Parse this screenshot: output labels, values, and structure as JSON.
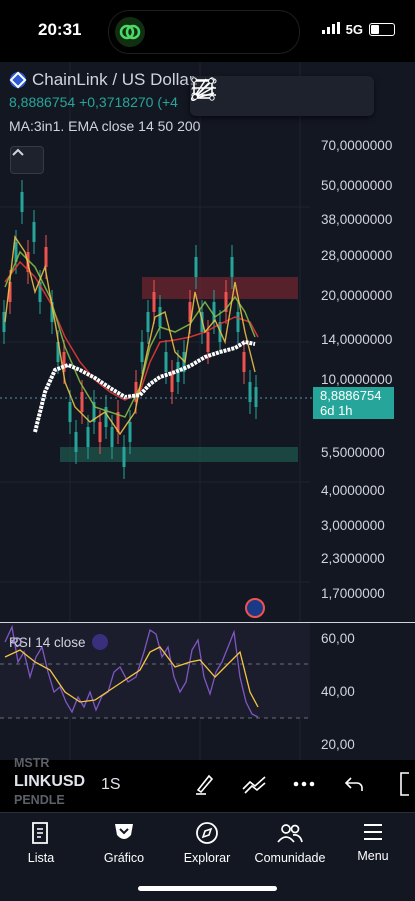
{
  "status_bar": {
    "time": "20:31",
    "network": "5G"
  },
  "chart": {
    "symbol_title": "ChainLink / US Dollar",
    "last_price": "8,8886754",
    "change": "+0,3718270 (+4",
    "indicator_label": "MA:3in1. EMA close 14 50 200",
    "collapse_icon": "chevron-up-icon",
    "toolbar_icons": [
      "drag-handle-icon",
      "fib-fan-icon",
      "horizontal-lines-icon",
      "rectangle-icon",
      "trend-line-icon"
    ],
    "price_axis_labels": [
      "70,0000000",
      "50,0000000",
      "38,0000000",
      "28,0000000",
      "20,0000000",
      "14,0000000",
      "10,0000000",
      "5,5000000",
      "4,0000000",
      "3,0000000",
      "2,3000000",
      "1,7000000"
    ],
    "price_tag": {
      "price": "8,8886754",
      "countdown": "6d 1h"
    },
    "colors": {
      "bg": "#131722",
      "up": "#26a69a",
      "down": "#ef5350",
      "ema_fast": "#f7c948",
      "ema_mid": "#8bc34a",
      "ema_slow": "#e53935",
      "ema_long": "#ffffff",
      "rsi": "#7e57c2",
      "rsi_ma": "#f5c542"
    }
  },
  "rsi": {
    "label": "RSI 14 close",
    "axis_labels": [
      "60,00",
      "40,00",
      "20,00"
    ]
  },
  "bottom_bar": {
    "symbols_above": "MSTR",
    "symbol": "LINKUSD",
    "symbols_below": "PENDLE",
    "interval": "1S",
    "icons": [
      "brush-icon",
      "trend-tools-icon",
      "more-icon",
      "undo-icon"
    ]
  },
  "tabs": [
    {
      "label": "Lista",
      "icon": "list-icon"
    },
    {
      "label": "Gráfico",
      "icon": "chart-icon"
    },
    {
      "label": "Explorar",
      "icon": "compass-icon"
    },
    {
      "label": "Comunidade",
      "icon": "people-icon"
    },
    {
      "label": "Menu",
      "icon": "menu-icon"
    }
  ]
}
